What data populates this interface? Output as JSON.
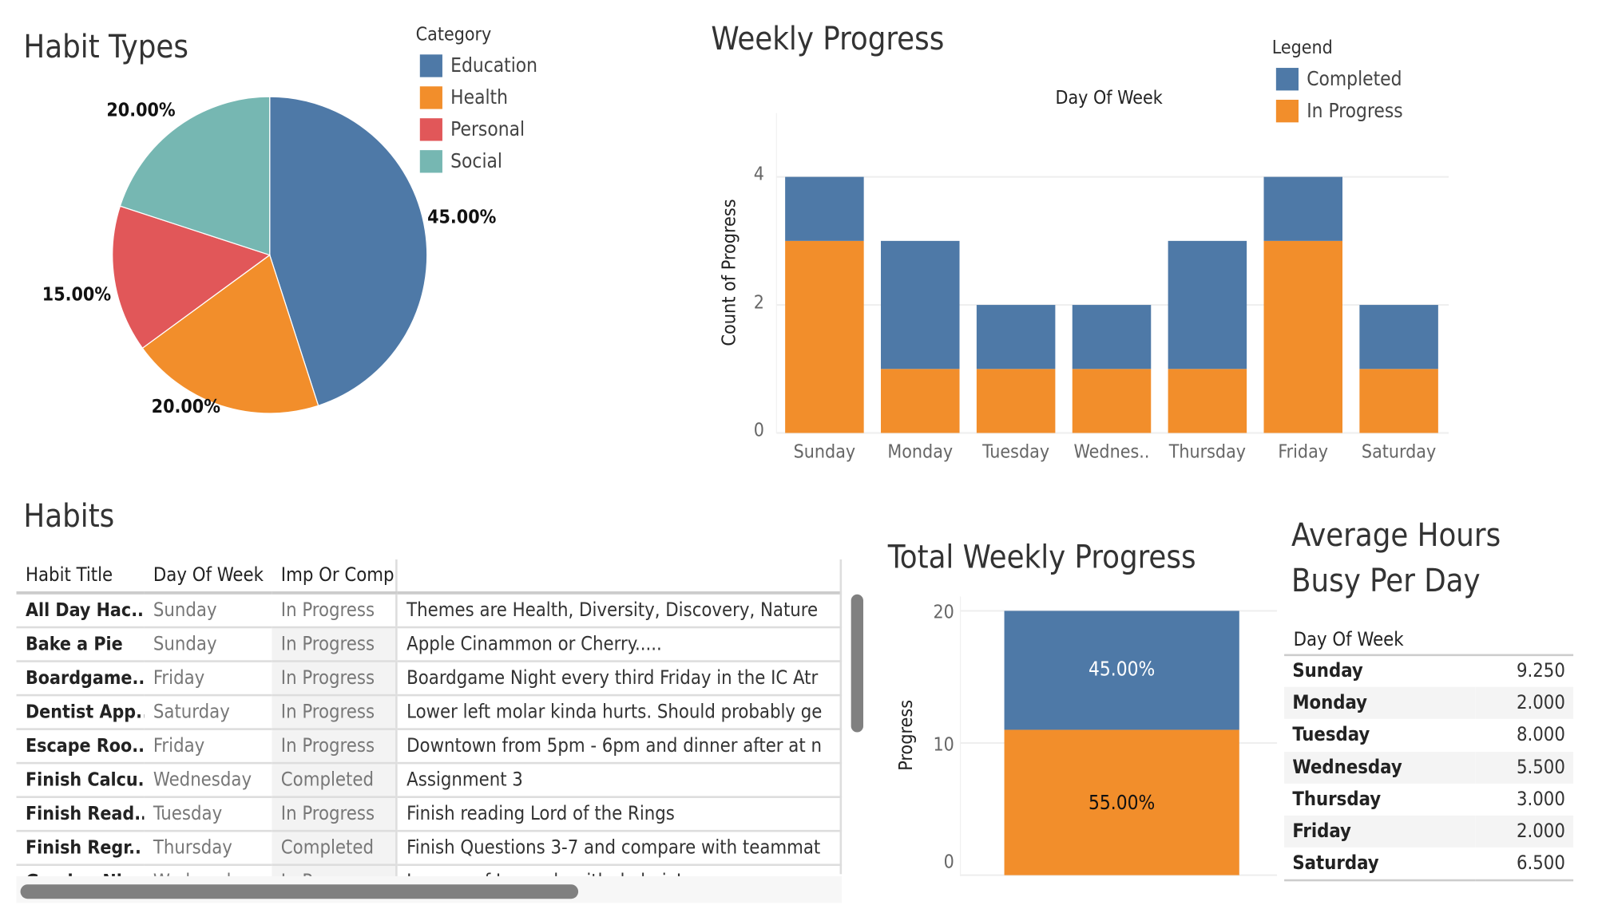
{
  "colors": {
    "education": "#4e79a7",
    "health": "#f28e2b",
    "personal": "#e15759",
    "social": "#76b7b2",
    "completed": "#4e79a7",
    "in_progress": "#f28e2b"
  },
  "habit_types": {
    "title": "Habit Types",
    "legend_title": "Category",
    "slices": [
      {
        "label": "Education",
        "value": 45,
        "text": "45.00%"
      },
      {
        "label": "Health",
        "value": 20,
        "text": "20.00%"
      },
      {
        "label": "Personal",
        "value": 15,
        "text": "15.00%"
      },
      {
        "label": "Social",
        "value": 20,
        "text": "20.00%"
      }
    ]
  },
  "weekly_progress": {
    "title": "Weekly Progress",
    "legend_title": "Legend",
    "x_title": "Day Of Week",
    "y_title": "Count of Progress",
    "legend": [
      "Completed",
      "In Progress"
    ],
    "y_ticks": [
      "0",
      "2",
      "4"
    ]
  },
  "chart_data": [
    {
      "type": "pie",
      "title": "Habit Types",
      "categories": [
        "Education",
        "Health",
        "Personal",
        "Social"
      ],
      "values": [
        45,
        20,
        15,
        20
      ]
    },
    {
      "type": "bar",
      "stacked": true,
      "title": "Weekly Progress",
      "xlabel": "Day Of Week",
      "ylabel": "Count of Progress",
      "ylim": [
        0,
        4
      ],
      "categories": [
        "Sunday",
        "Monday",
        "Tuesday",
        "Wednes..",
        "Thursday",
        "Friday",
        "Saturday"
      ],
      "series": [
        {
          "name": "In Progress",
          "values": [
            3,
            1,
            1,
            1,
            1,
            3,
            1
          ]
        },
        {
          "name": "Completed",
          "values": [
            1,
            2,
            1,
            1,
            2,
            1,
            1
          ]
        }
      ]
    },
    {
      "type": "bar",
      "stacked": true,
      "title": "Total Weekly Progress",
      "ylabel": "Progress",
      "ylim": [
        0,
        20
      ],
      "y_ticks": [
        "0",
        "10",
        "20"
      ],
      "series": [
        {
          "name": "In Progress",
          "values": [
            11
          ],
          "label": "55.00%"
        },
        {
          "name": "Completed",
          "values": [
            9
          ],
          "label": "45.00%"
        }
      ]
    }
  ],
  "total_weekly": {
    "title": "Total Weekly Progress",
    "y_title": "Progress",
    "y_ticks": [
      "0",
      "10",
      "20"
    ],
    "completed_label": "45.00%",
    "in_progress_label": "55.00%"
  },
  "habits": {
    "title": "Habits",
    "columns": [
      "Habit Title",
      "Day Of Week",
      "Imp Or Comp"
    ],
    "rows": [
      [
        "All Day Hac..",
        "Sunday",
        "In Progress",
        "Themes are Health, Diversity, Discovery, Nature"
      ],
      [
        "Bake a Pie",
        "Sunday",
        "In Progress",
        "Apple Cinammon or Cherry....."
      ],
      [
        "Boardgame..",
        "Friday",
        "In Progress",
        "Boardgame Night every third Friday in the IC Atr"
      ],
      [
        "Dentist App..",
        "Saturday",
        "In Progress",
        "Lower left molar kinda hurts. Should probably ge"
      ],
      [
        "Escape Roo..",
        "Friday",
        "In Progress",
        "Downtown from 5pm - 6pm and dinner after at n"
      ],
      [
        "Finish Calcu..",
        "Wednesday",
        "Completed",
        "Assignment 3"
      ],
      [
        "Finish Read..",
        "Tuesday",
        "In Progress",
        "Finish reading Lord of the Rings"
      ],
      [
        "Finish Regr..",
        "Thursday",
        "Completed",
        "Finish Questions 3-7 and compare with teammat"
      ],
      [
        "Gaming Nig..",
        "Wednesday",
        "In Progress",
        "League of Legends with da bois!"
      ]
    ]
  },
  "avg_hours": {
    "title_line1": "Average Hours",
    "title_line2": "Busy Per Day",
    "column": "Day Of Week",
    "rows": [
      [
        "Sunday",
        "9.250"
      ],
      [
        "Monday",
        "2.000"
      ],
      [
        "Tuesday",
        "8.000"
      ],
      [
        "Wednesday",
        "5.500"
      ],
      [
        "Thursday",
        "3.000"
      ],
      [
        "Friday",
        "2.000"
      ],
      [
        "Saturday",
        "6.500"
      ]
    ]
  }
}
